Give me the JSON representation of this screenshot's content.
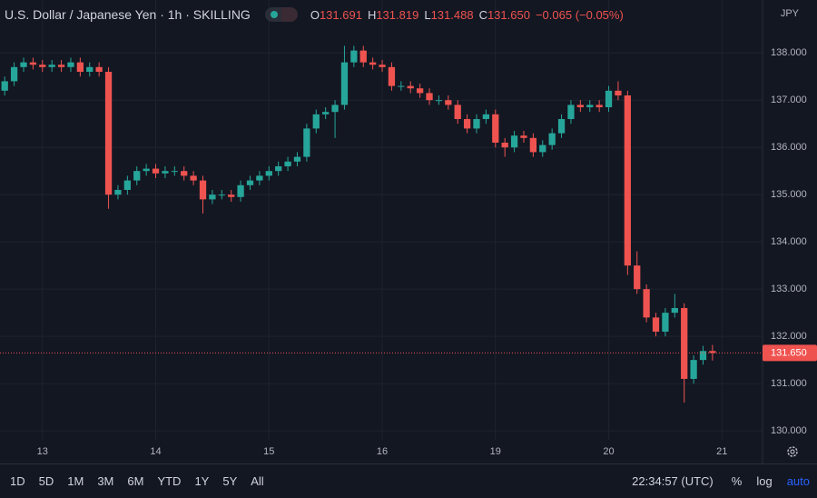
{
  "header": {
    "title": "U.S. Dollar / Japanese Yen · 1h · SKILLING",
    "ohlc_keys": [
      "O",
      "H",
      "L",
      "C"
    ],
    "open": "131.691",
    "high": "131.819",
    "low": "131.488",
    "close": "131.650",
    "change": "−0.065 (−0.05%)"
  },
  "chart_data": {
    "type": "candlestick",
    "currency": "JPY",
    "up_color": "#26a69a",
    "down_color": "#ef5350",
    "open": [
      137.2,
      137.4,
      137.7,
      137.8,
      137.75,
      137.7,
      137.75,
      137.7,
      137.8,
      137.6,
      137.7,
      137.6,
      135.0,
      135.1,
      135.3,
      135.5,
      135.55,
      135.45,
      135.5,
      135.5,
      135.4,
      135.3,
      134.9,
      135.0,
      135.0,
      134.95,
      135.2,
      135.3,
      135.4,
      135.5,
      135.6,
      135.7,
      135.8,
      136.4,
      136.7,
      136.75,
      136.9,
      137.8,
      138.05,
      137.8,
      137.75,
      137.7,
      137.3,
      137.3,
      137.25,
      137.15,
      137.0,
      137.0,
      136.9,
      136.6,
      136.4,
      136.6,
      136.7,
      136.1,
      136.0,
      136.25,
      136.2,
      135.9,
      136.05,
      136.3,
      136.6,
      136.9,
      136.85,
      136.9,
      136.85,
      137.2,
      137.1,
      133.5,
      133.0,
      132.4,
      132.1,
      132.5,
      132.6,
      131.1,
      131.5,
      131.691
    ],
    "high": [
      137.5,
      137.8,
      137.9,
      137.9,
      137.85,
      137.85,
      137.85,
      137.9,
      137.9,
      137.8,
      137.8,
      137.7,
      135.2,
      135.4,
      135.6,
      135.65,
      135.65,
      135.6,
      135.6,
      135.6,
      135.5,
      135.4,
      135.1,
      135.1,
      135.1,
      135.3,
      135.4,
      135.5,
      135.6,
      135.7,
      135.8,
      135.9,
      136.5,
      136.8,
      136.85,
      137.0,
      138.15,
      138.15,
      138.15,
      137.9,
      137.85,
      137.8,
      137.4,
      137.4,
      137.35,
      137.25,
      137.1,
      137.1,
      137.0,
      136.7,
      136.7,
      136.8,
      136.8,
      136.2,
      136.35,
      136.35,
      136.3,
      136.15,
      136.4,
      136.7,
      137.0,
      137.0,
      137.0,
      137.0,
      137.3,
      137.4,
      137.2,
      133.8,
      133.1,
      132.5,
      132.6,
      132.9,
      132.7,
      131.6,
      131.8,
      131.819
    ],
    "low": [
      137.1,
      137.3,
      137.6,
      137.65,
      137.6,
      137.6,
      137.6,
      137.6,
      137.5,
      137.5,
      137.5,
      134.7,
      134.9,
      135.0,
      135.2,
      135.4,
      135.35,
      135.35,
      135.4,
      135.3,
      135.2,
      134.6,
      134.8,
      134.9,
      134.85,
      134.85,
      135.1,
      135.2,
      135.3,
      135.4,
      135.5,
      135.6,
      135.7,
      136.3,
      136.6,
      136.2,
      136.8,
      137.7,
      137.7,
      137.65,
      137.6,
      137.2,
      137.2,
      137.15,
      137.05,
      136.9,
      136.9,
      136.8,
      136.5,
      136.3,
      136.3,
      136.5,
      136.0,
      135.8,
      135.9,
      136.1,
      135.8,
      135.8,
      135.95,
      136.2,
      136.5,
      136.75,
      136.75,
      136.75,
      136.75,
      137.0,
      133.3,
      132.9,
      132.3,
      132.0,
      132.0,
      132.4,
      130.6,
      131.0,
      131.4,
      131.488
    ],
    "close": [
      137.4,
      137.7,
      137.8,
      137.75,
      137.7,
      137.75,
      137.7,
      137.8,
      137.6,
      137.7,
      137.6,
      135.0,
      135.1,
      135.3,
      135.5,
      135.55,
      135.45,
      135.5,
      135.5,
      135.4,
      135.3,
      134.9,
      135.0,
      135.0,
      134.95,
      135.2,
      135.3,
      135.4,
      135.5,
      135.6,
      135.7,
      135.8,
      136.4,
      136.7,
      136.75,
      136.9,
      137.8,
      138.05,
      137.8,
      137.75,
      137.7,
      137.3,
      137.3,
      137.25,
      137.15,
      137.0,
      137.0,
      136.9,
      136.6,
      136.4,
      136.6,
      136.7,
      136.1,
      136.0,
      136.25,
      136.2,
      135.9,
      136.05,
      136.3,
      136.6,
      136.9,
      136.85,
      136.9,
      136.85,
      137.2,
      137.1,
      133.5,
      133.0,
      132.4,
      132.1,
      132.5,
      132.6,
      131.1,
      131.5,
      131.69,
      131.65
    ],
    "xlim": [
      -0.5,
      80.3
    ],
    "xticks": [
      {
        "value": 4,
        "label": "13"
      },
      {
        "value": 16,
        "label": "14"
      },
      {
        "value": 28,
        "label": "15"
      },
      {
        "value": 40,
        "label": "16"
      },
      {
        "value": 52,
        "label": "19"
      },
      {
        "value": 64,
        "label": "20"
      },
      {
        "value": 76,
        "label": "21"
      }
    ],
    "ylim": [
      129.31,
      139.12
    ],
    "yticks": [
      {
        "value": 130,
        "label": "130.000"
      },
      {
        "value": 131,
        "label": "131.000"
      },
      {
        "value": 132,
        "label": "132.000"
      },
      {
        "value": 133,
        "label": "133.000"
      },
      {
        "value": 134,
        "label": "134.000"
      },
      {
        "value": 135,
        "label": "135.000"
      },
      {
        "value": 136,
        "label": "136.000"
      },
      {
        "value": 137,
        "label": "137.000"
      },
      {
        "value": 138,
        "label": "138.000"
      }
    ],
    "price_tag": {
      "value": 131.65,
      "label": "131.650"
    },
    "grid": true
  },
  "toolbar": {
    "ranges": [
      "1D",
      "5D",
      "1M",
      "3M",
      "6M",
      "YTD",
      "1Y",
      "5Y",
      "All"
    ],
    "time": "22:34:57 (UTC)",
    "options": [
      "%",
      "log",
      "auto"
    ]
  }
}
